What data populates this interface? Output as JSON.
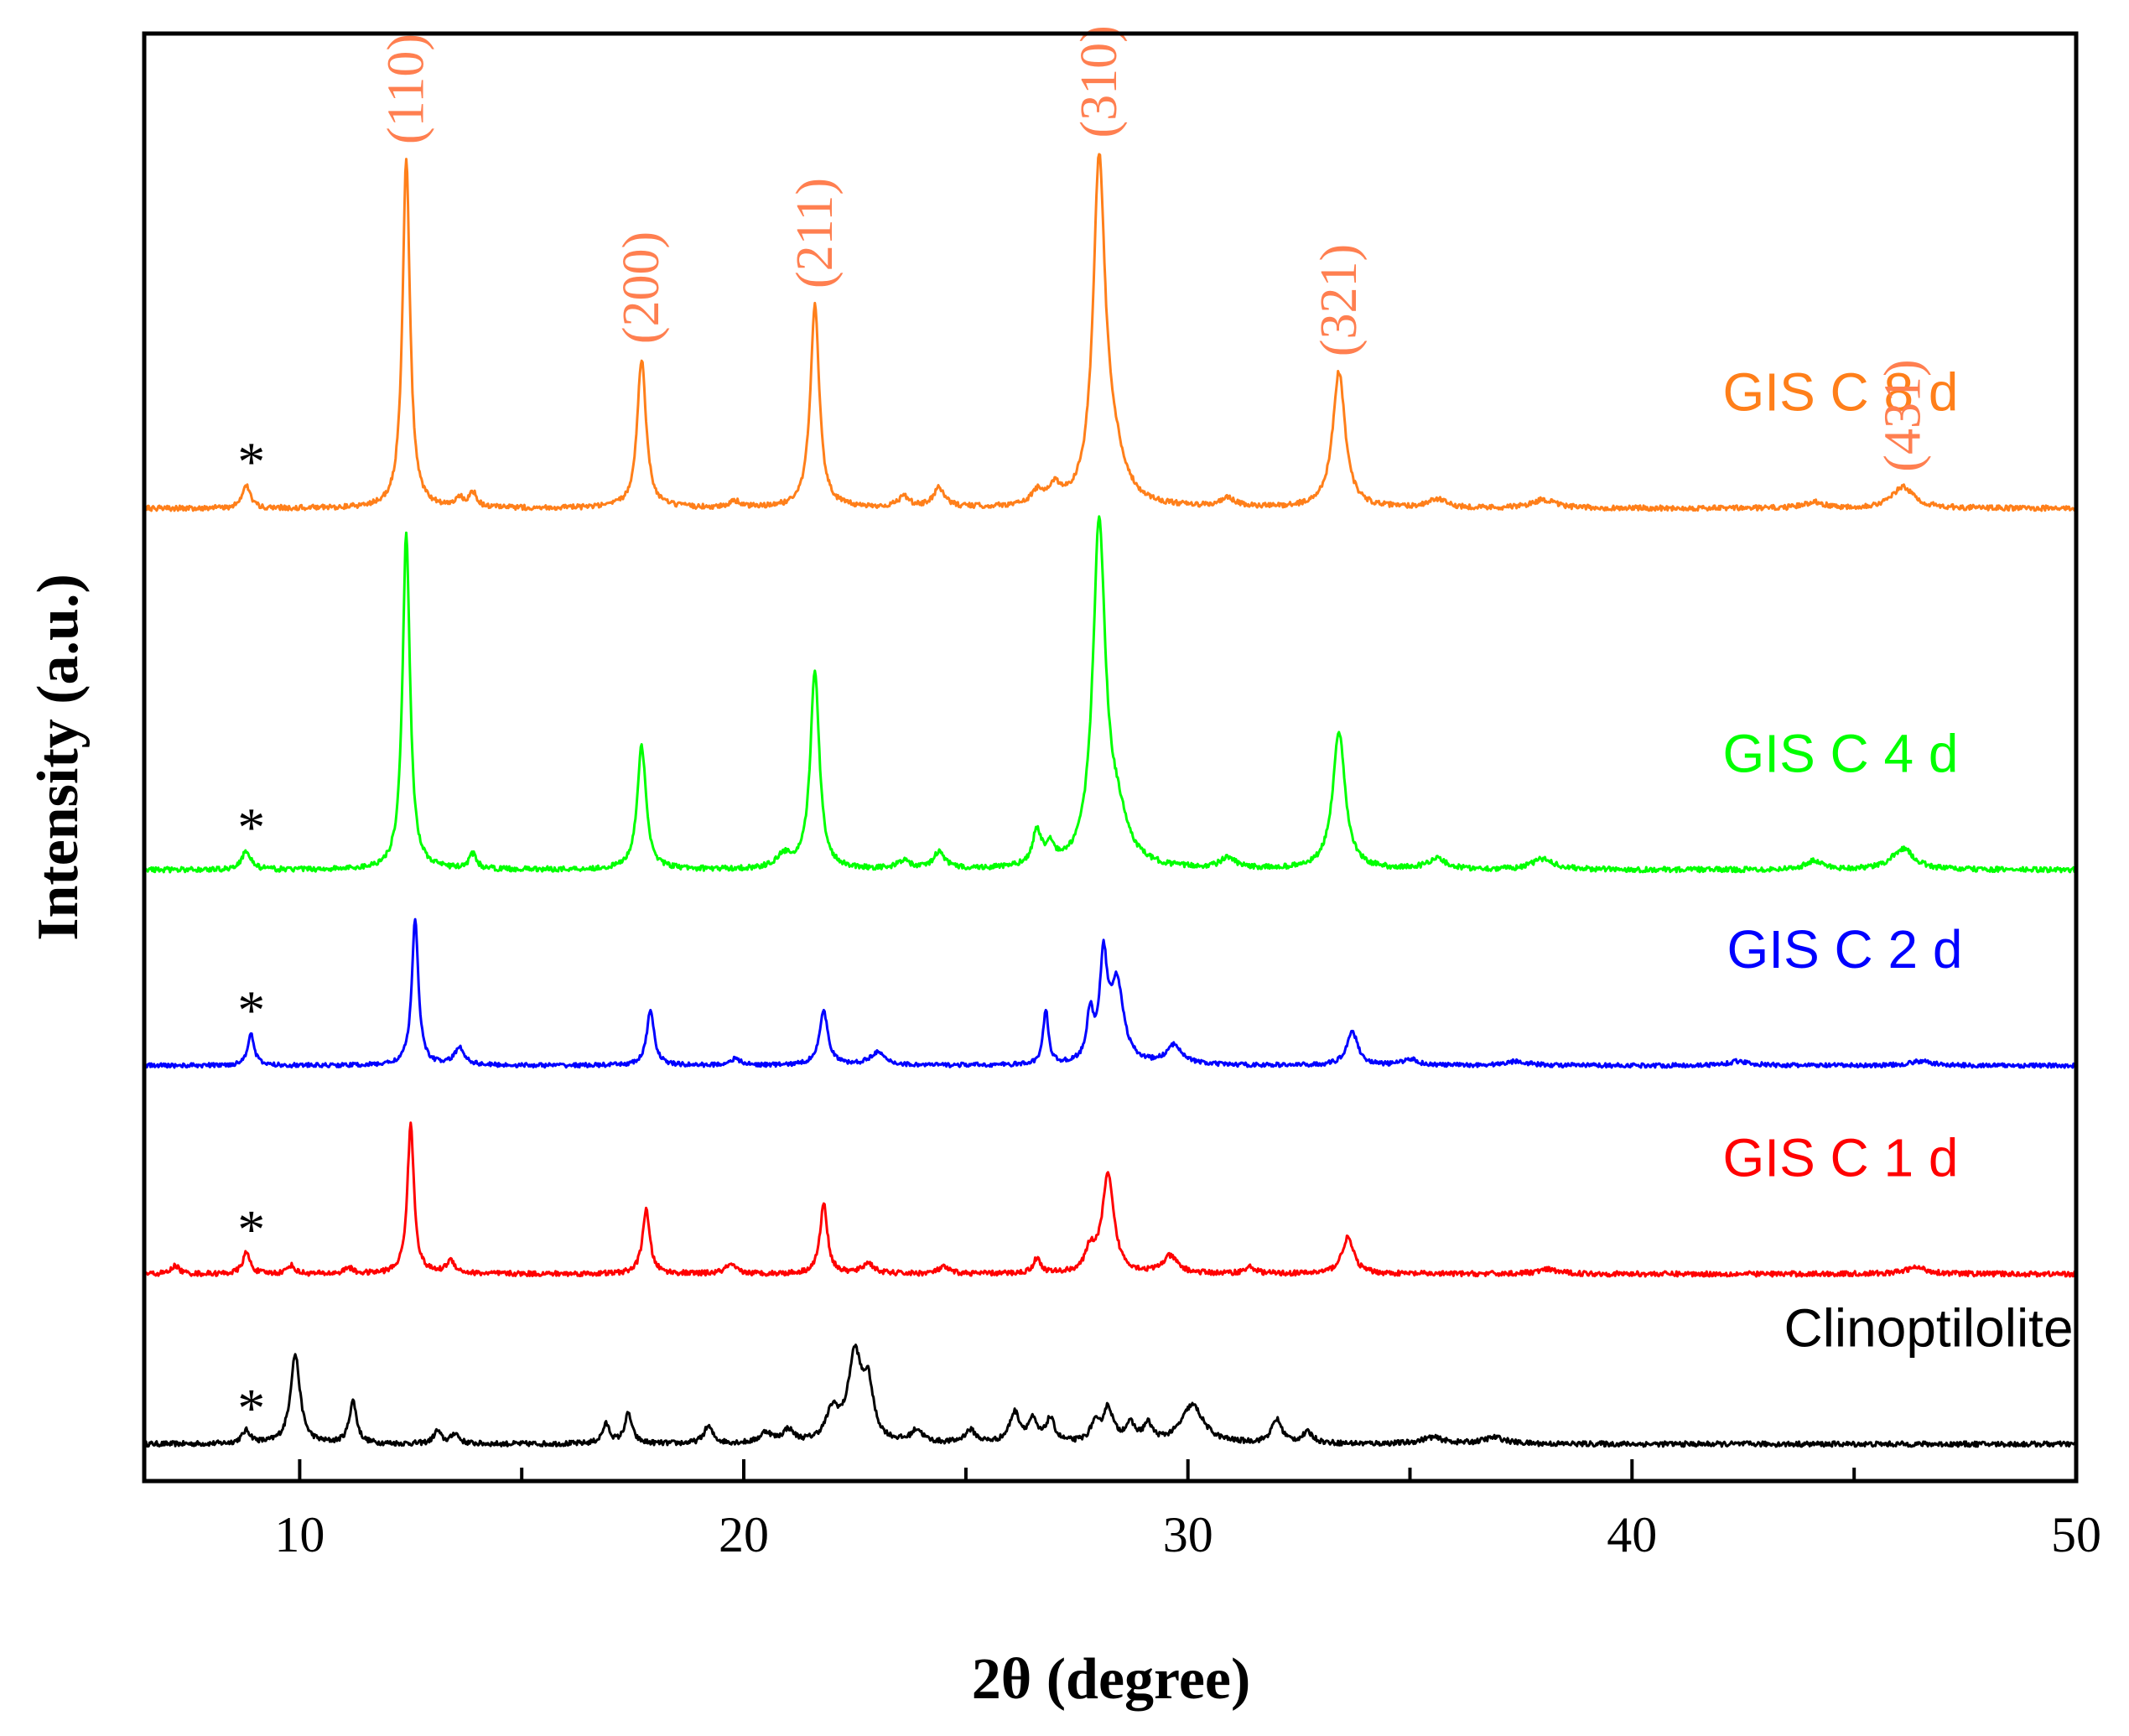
{
  "chart_data": {
    "type": "line",
    "title": "",
    "xlabel": "2θ (degree)",
    "ylabel": "Intensity (a.u.)",
    "xlim": [
      6.5,
      50
    ],
    "xticks": [
      10,
      20,
      30,
      40,
      50
    ],
    "yticks_shown": false,
    "grid": false,
    "legend": "inline labels at right of each trace",
    "impurity_marker": "*",
    "impurity_position": 8.8,
    "series": [
      {
        "name": "Clinoptilolite",
        "color": "#000000",
        "label": "Clinoptilolite",
        "baseline": 0.0,
        "noise": 0.012,
        "peaks": [
          [
            8.8,
            0.06,
            0.12
          ],
          [
            9.9,
            0.42,
            0.13
          ],
          [
            11.2,
            0.2,
            0.1
          ],
          [
            13.1,
            0.06,
            0.1
          ],
          [
            13.5,
            0.05,
            0.1
          ],
          [
            16.9,
            0.09,
            0.1
          ],
          [
            17.4,
            0.14,
            0.1
          ],
          [
            19.2,
            0.08,
            0.12
          ],
          [
            20.5,
            0.05,
            0.15
          ],
          [
            21.0,
            0.06,
            0.15
          ],
          [
            22.0,
            0.14,
            0.18
          ],
          [
            22.5,
            0.4,
            0.18
          ],
          [
            22.8,
            0.24,
            0.14
          ],
          [
            23.9,
            0.06,
            0.15
          ],
          [
            25.1,
            0.06,
            0.15
          ],
          [
            26.1,
            0.14,
            0.14
          ],
          [
            26.5,
            0.1,
            0.12
          ],
          [
            26.9,
            0.11,
            0.12
          ],
          [
            27.9,
            0.08,
            0.12
          ],
          [
            28.2,
            0.16,
            0.14
          ],
          [
            28.7,
            0.08,
            0.14
          ],
          [
            29.1,
            0.08,
            0.12
          ],
          [
            30.1,
            0.18,
            0.3
          ],
          [
            32.0,
            0.11,
            0.14
          ],
          [
            32.7,
            0.05,
            0.15
          ],
          [
            35.5,
            0.03,
            0.3
          ],
          [
            36.9,
            0.03,
            0.3
          ]
        ]
      },
      {
        "name": "GIS C 1 d",
        "color": "#ff0000",
        "label": "GIS C 1 d",
        "baseline": 0.8,
        "noise": 0.012,
        "peaks": [
          [
            7.2,
            0.04,
            0.1
          ],
          [
            8.8,
            0.1,
            0.1
          ],
          [
            9.8,
            0.04,
            0.1
          ],
          [
            11.1,
            0.03,
            0.1
          ],
          [
            12.5,
            0.7,
            0.09
          ],
          [
            13.4,
            0.06,
            0.12
          ],
          [
            17.8,
            0.3,
            0.1
          ],
          [
            19.7,
            0.04,
            0.15
          ],
          [
            21.8,
            0.33,
            0.1
          ],
          [
            22.8,
            0.05,
            0.15
          ],
          [
            24.5,
            0.03,
            0.15
          ],
          [
            26.6,
            0.07,
            0.1
          ],
          [
            27.8,
            0.1,
            0.12
          ],
          [
            28.2,
            0.46,
            0.16
          ],
          [
            29.6,
            0.08,
            0.2
          ],
          [
            31.4,
            0.03,
            0.15
          ],
          [
            33.6,
            0.17,
            0.16
          ],
          [
            38.1,
            0.02,
            0.3
          ],
          [
            46.4,
            0.03,
            0.3
          ]
        ]
      },
      {
        "name": "GIS C 2 d",
        "color": "#0000ff",
        "label": "GIS C 2 d",
        "baseline": 1.78,
        "noise": 0.01,
        "peaks": [
          [
            8.9,
            0.15,
            0.09
          ],
          [
            12.6,
            0.68,
            0.09
          ],
          [
            13.6,
            0.08,
            0.14
          ],
          [
            17.9,
            0.26,
            0.1
          ],
          [
            19.8,
            0.03,
            0.15
          ],
          [
            21.8,
            0.25,
            0.12
          ],
          [
            23.0,
            0.06,
            0.2
          ],
          [
            26.8,
            0.26,
            0.07
          ],
          [
            27.8,
            0.22,
            0.09
          ],
          [
            28.1,
            0.46,
            0.1
          ],
          [
            28.4,
            0.38,
            0.18
          ],
          [
            29.7,
            0.09,
            0.22
          ],
          [
            33.7,
            0.16,
            0.15
          ],
          [
            35.0,
            0.03,
            0.2
          ],
          [
            37.4,
            0.02,
            0.3
          ],
          [
            42.4,
            0.02,
            0.3
          ],
          [
            46.5,
            0.02,
            0.3
          ]
        ]
      },
      {
        "name": "GIS C 4 d",
        "color": "#00ff00",
        "label": "GIS C 4 d",
        "baseline": 2.7,
        "noise": 0.012,
        "peaks": [
          [
            8.8,
            0.09,
            0.12
          ],
          [
            12.4,
            1.58,
            0.1
          ],
          [
            13.9,
            0.07,
            0.1
          ],
          [
            17.7,
            0.58,
            0.12
          ],
          [
            20.9,
            0.06,
            0.2
          ],
          [
            21.6,
            0.94,
            0.12
          ],
          [
            23.6,
            0.04,
            0.15
          ],
          [
            24.4,
            0.08,
            0.15
          ],
          [
            26.6,
            0.16,
            0.12
          ],
          [
            26.9,
            0.08,
            0.12
          ],
          [
            28.0,
            1.58,
            0.17
          ],
          [
            28.4,
            0.2,
            0.3
          ],
          [
            30.9,
            0.05,
            0.2
          ],
          [
            33.4,
            0.64,
            0.17
          ],
          [
            35.6,
            0.05,
            0.25
          ],
          [
            38.0,
            0.05,
            0.3
          ],
          [
            44.1,
            0.04,
            0.25
          ],
          [
            46.1,
            0.1,
            0.3
          ]
        ]
      },
      {
        "name": "GIS C 8 d",
        "color": "#ff7f1a",
        "label": "GIS C 8 d",
        "baseline": 4.4,
        "noise": 0.012,
        "peaks": [
          [
            8.8,
            0.11,
            0.1
          ],
          [
            12.4,
            1.64,
            0.1
          ],
          [
            13.6,
            0.04,
            0.1
          ],
          [
            13.9,
            0.07,
            0.1
          ],
          [
            17.7,
            0.7,
            0.12
          ],
          [
            19.8,
            0.03,
            0.15
          ],
          [
            21.6,
            0.96,
            0.12
          ],
          [
            23.6,
            0.05,
            0.15
          ],
          [
            24.4,
            0.09,
            0.15
          ],
          [
            26.6,
            0.06,
            0.15
          ],
          [
            27.0,
            0.08,
            0.15
          ],
          [
            28.0,
            1.55,
            0.16
          ],
          [
            28.3,
            0.22,
            0.32
          ],
          [
            30.9,
            0.04,
            0.2
          ],
          [
            33.4,
            0.64,
            0.17
          ],
          [
            35.6,
            0.04,
            0.25
          ],
          [
            38.0,
            0.04,
            0.3
          ],
          [
            44.1,
            0.03,
            0.25
          ],
          [
            46.1,
            0.1,
            0.3
          ]
        ]
      }
    ],
    "peak_labels": [
      {
        "text": "(110)",
        "x": 12.4,
        "color": "#ff7f50"
      },
      {
        "text": "(200)",
        "x": 17.7,
        "color": "#ff7f50"
      },
      {
        "text": "(211)",
        "x": 21.6,
        "color": "#ff7f50"
      },
      {
        "text": "(310)",
        "x": 28.0,
        "color": "#ff7f50"
      },
      {
        "text": "(321)",
        "x": 33.4,
        "color": "#ff7f50"
      },
      {
        "text": "(431)",
        "x": 46.1,
        "color": "#ff7f50"
      }
    ]
  }
}
